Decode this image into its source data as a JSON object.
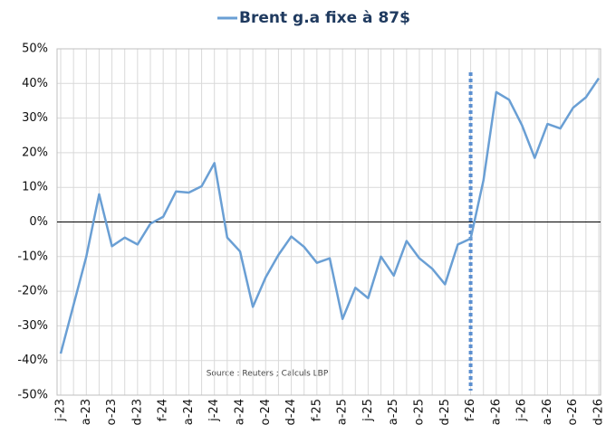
{
  "chart_data": {
    "type": "line",
    "series": [
      {
        "name": "Brent g.a fixe à 87$",
        "color": "#6a9fd4",
        "values": [
          -38,
          -24,
          -10,
          8,
          -7,
          -4.5,
          -6.5,
          -0.5,
          1.5,
          8.8,
          8.5,
          10.3,
          17,
          -4.5,
          -8.5,
          -24.5,
          -16,
          -9.5,
          -4.2,
          -7.2,
          -11.8,
          -10.5,
          -28,
          -19,
          -22,
          -10,
          -15.5,
          -5.5,
          -10.5,
          -13.5,
          -18,
          -6.5,
          -4.8,
          12,
          37.5,
          35.3,
          28,
          18.5,
          28.3,
          27,
          33,
          36,
          41.5
        ]
      }
    ],
    "categories": [
      "j-23",
      null,
      "a-23",
      null,
      "o-23",
      null,
      "d-23",
      null,
      "f-24",
      null,
      "a-24",
      null,
      "j-24",
      null,
      "a-24",
      null,
      "o-24",
      null,
      "d-24",
      null,
      "f-25",
      null,
      "a-25",
      null,
      "j-25",
      null,
      "a-25",
      null,
      "o-25",
      null,
      "d-25",
      null,
      "f-26",
      null,
      "a-26",
      null,
      "j-26",
      null,
      "a-26",
      null,
      "o-26",
      null,
      "d-26"
    ],
    "ylim": [
      -50,
      50
    ],
    "yticks": [
      {
        "value": -50,
        "label": "-50%"
      },
      {
        "value": -40,
        "label": "-40%"
      },
      {
        "value": -30,
        "label": "-30%"
      },
      {
        "value": -20,
        "label": "-20%"
      },
      {
        "value": -10,
        "label": "-10%"
      },
      {
        "value": 0,
        "label": "0%"
      },
      {
        "value": 10,
        "label": "10%"
      },
      {
        "value": 20,
        "label": "20%"
      },
      {
        "value": 30,
        "label": "30%"
      },
      {
        "value": 40,
        "label": "40%"
      },
      {
        "value": 50,
        "label": "50%"
      }
    ],
    "grid": true,
    "legend": "top",
    "annotation": "Source : Reuters ; Calculs LBP"
  }
}
